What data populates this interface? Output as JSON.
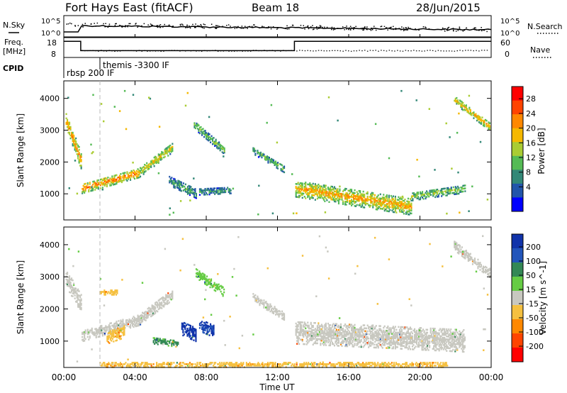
{
  "header": {
    "site": "Fort Hays East (fitACF)",
    "beam": "Beam 18",
    "date": "28/Jun/2015"
  },
  "summary_panel": {
    "left_labels": {
      "nsky": "N.Sky",
      "freq_top": "Freq.",
      "freq_unit": "[MHz]",
      "cpid": "CPID"
    },
    "right_labels": {
      "nsearch": "N.Search",
      "nave": "Nave"
    },
    "noise_ticks_left": [
      "10^5",
      "10^0"
    ],
    "noise_ticks_right": [
      "10^5",
      "10^0"
    ],
    "freq_ticks": [
      "18",
      "8"
    ],
    "nave_ticks": [
      "60",
      "0"
    ],
    "cpid_labels": [
      "rbsp 200 IF",
      "themis -3300 IF"
    ],
    "freq_series": {
      "x": [
        0.0,
        0.95,
        0.95,
        12.95,
        12.95,
        24.0
      ],
      "y": [
        17,
        17,
        11,
        11,
        17,
        17
      ]
    },
    "freq_range": [
      8,
      18
    ]
  },
  "axes": {
    "xlabel": "Time UT",
    "xticks": [
      "00:00",
      "04:00",
      "08:00",
      "12:00",
      "16:00",
      "20:00",
      "00:00"
    ],
    "xtick_hours": [
      0,
      4,
      8,
      12,
      16,
      20,
      24
    ],
    "xrange": [
      0,
      24
    ],
    "ylabel": "Slant Range [km]",
    "yticks": [
      "1000",
      "2000",
      "3000",
      "4000"
    ],
    "ytick_values": [
      1000,
      2000,
      3000,
      4000
    ],
    "yrange": [
      180,
      4550
    ]
  },
  "power_panel": {
    "colorbar_label": "Power [dB]",
    "ticks": [
      "28",
      "24",
      "20",
      "16",
      "12",
      "8",
      "4"
    ],
    "colors": [
      "#ff0000",
      "#ff4400",
      "#ff8800",
      "#f5b800",
      "#aacc33",
      "#55bb55",
      "#338877",
      "#2255aa",
      "#0000ff"
    ]
  },
  "velocity_panel": {
    "colorbar_label": "Velocity [m s^-1]",
    "ticks": [
      "200",
      "100",
      "50",
      "15",
      "-15",
      "-50",
      "-100",
      "-200"
    ],
    "colors": [
      "#1133aa",
      "#2255bb",
      "#338855",
      "#66cc44",
      "#c8c8c0",
      "#f5c040",
      "#ff8800",
      "#ff4400",
      "#ff0000"
    ]
  },
  "chart_data": [
    {
      "type": "heatmap",
      "title": "Power [dB]",
      "x_unit": "hours UT",
      "y_unit": "km",
      "xlim": [
        0,
        24
      ],
      "ylim": [
        180,
        4550
      ],
      "bands": [
        {
          "t0": 0.1,
          "t1": 1.0,
          "r0": 3300,
          "r1": 1950,
          "w": 520,
          "p": 22
        },
        {
          "t0": 1.0,
          "t1": 4.2,
          "r0": 1150,
          "r1": 1650,
          "w": 300,
          "p": 24
        },
        {
          "t0": 4.2,
          "t1": 6.1,
          "r0": 1650,
          "r1": 2450,
          "w": 300,
          "p": 18
        },
        {
          "t0": 5.9,
          "t1": 7.4,
          "r0": 1400,
          "r1": 1000,
          "w": 300,
          "p": 10
        },
        {
          "t0": 7.6,
          "t1": 9.4,
          "r0": 1050,
          "r1": 1100,
          "w": 200,
          "p": 9
        },
        {
          "t0": 7.3,
          "t1": 9.0,
          "r0": 3150,
          "r1": 2350,
          "w": 250,
          "p": 12
        },
        {
          "t0": 10.6,
          "t1": 12.4,
          "r0": 2350,
          "r1": 1750,
          "w": 220,
          "p": 12
        },
        {
          "t0": 13.0,
          "t1": 19.5,
          "r0": 1150,
          "r1": 580,
          "w": 520,
          "p": 21
        },
        {
          "t0": 19.5,
          "t1": 22.5,
          "r0": 900,
          "r1": 1150,
          "w": 260,
          "p": 14
        },
        {
          "t0": 21.9,
          "t1": 23.9,
          "r0": 3950,
          "r1": 3100,
          "w": 260,
          "p": 20
        }
      ]
    },
    {
      "type": "heatmap",
      "title": "Velocity [m s^-1]",
      "x_unit": "hours UT",
      "y_unit": "km",
      "xlim": [
        0,
        24
      ],
      "ylim": [
        180,
        4550
      ],
      "bands": [
        {
          "t0": 0.1,
          "t1": 1.0,
          "r0": 2950,
          "r1": 2100,
          "w": 550,
          "v": 0
        },
        {
          "t0": 1.0,
          "t1": 4.2,
          "r0": 1150,
          "r1": 1650,
          "w": 350,
          "v": 0
        },
        {
          "t0": 4.2,
          "t1": 6.1,
          "r0": 1650,
          "r1": 2450,
          "w": 350,
          "v": 0
        },
        {
          "t0": 2.0,
          "t1": 3.0,
          "r0": 2500,
          "r1": 2500,
          "w": 150,
          "v": -40
        },
        {
          "t0": 2.4,
          "t1": 3.4,
          "r0": 1100,
          "r1": 1300,
          "w": 400,
          "v": -40
        },
        {
          "t0": 6.6,
          "t1": 7.4,
          "r0": 1400,
          "r1": 1200,
          "w": 450,
          "v": 180
        },
        {
          "t0": 7.6,
          "t1": 8.4,
          "r0": 1500,
          "r1": 1300,
          "w": 400,
          "v": 160
        },
        {
          "t0": 5.0,
          "t1": 6.4,
          "r0": 1000,
          "r1": 900,
          "w": 200,
          "v": 60
        },
        {
          "t0": 7.4,
          "t1": 9.0,
          "r0": 3100,
          "r1": 2500,
          "w": 300,
          "v": 30
        },
        {
          "t0": 10.6,
          "t1": 12.4,
          "r0": 2350,
          "r1": 1750,
          "w": 250,
          "v": 0
        },
        {
          "t0": 13.0,
          "t1": 22.5,
          "r0": 1250,
          "r1": 1000,
          "w": 700,
          "v": 0
        },
        {
          "t0": 21.9,
          "t1": 23.9,
          "r0": 3950,
          "r1": 3100,
          "w": 280,
          "v": 0
        },
        {
          "t0": 2.0,
          "t1": 21.5,
          "r0": 250,
          "r1": 250,
          "w": 150,
          "v": -40
        }
      ]
    }
  ]
}
